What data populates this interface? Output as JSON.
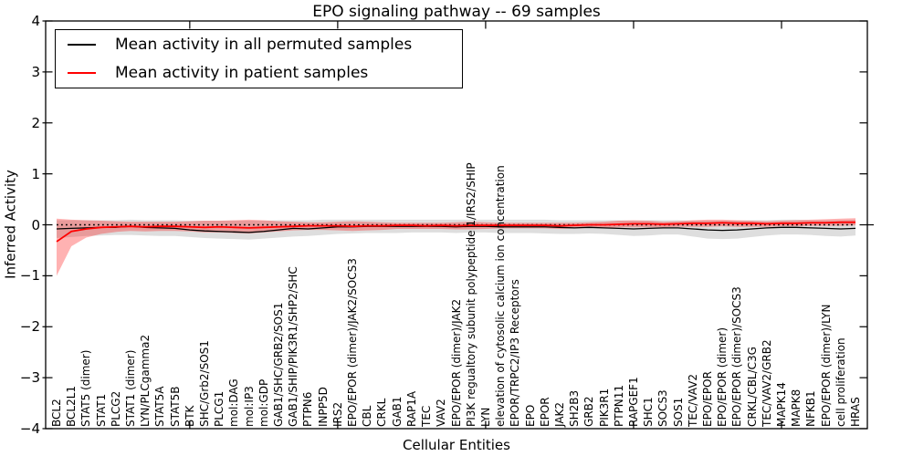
{
  "title": "EPO signaling pathway -- 69 samples",
  "legend": {
    "items": [
      {
        "label": "Mean activity in all permuted samples",
        "color": "#000000"
      },
      {
        "label": "Mean activity in patient samples",
        "color": "#ff0000"
      }
    ]
  },
  "axes": {
    "xlabel": "Cellular Entities",
    "ylabel": "Inferred Activity",
    "y_ticks": [
      4,
      3,
      2,
      1,
      0,
      -1,
      -2,
      -3,
      -4
    ],
    "ylim": [
      -4,
      4
    ]
  },
  "chart_data": {
    "type": "line",
    "title": "EPO signaling pathway -- 69 samples",
    "xlabel": "Cellular Entities",
    "ylabel": "Inferred Activity",
    "ylim": [
      -4,
      4
    ],
    "grid": false,
    "legend_position": "upper left",
    "reference_line": {
      "y": 0,
      "style": "dotted",
      "color": "#000000"
    },
    "x_major_ticks": [
      10,
      20,
      30,
      40,
      50
    ],
    "band_colors": {
      "permuted": "rgba(0,0,0,0.13)",
      "patient": "rgba(255,0,0,0.30)"
    },
    "categories": [
      "BCL2",
      "BCL2L1",
      "STAT5 (dimer)",
      "STAT1",
      "PLCG2",
      "STAT1 (dimer)",
      "LYN/PLCgamma2",
      "STAT5A",
      "STAT5B",
      "BTK",
      "SHC/Grb2/SOS1",
      "PLCG1",
      "mol:DAG",
      "mol:IP3",
      "mol:GDP",
      "GAB1/SHC/GRB2/SOS1",
      "GAB1/SHIP/PIK3R1/SHP2/SHC",
      "PTPN6",
      "INPP5D",
      "IRS2",
      "EPO/EPOR (dimer)/JAK2/SOCS3",
      "CBL",
      "CRKL",
      "GAB1",
      "RAP1A",
      "TEC",
      "VAV2",
      "EPO/EPOR (dimer)/JAK2",
      "PI3K regualtory subunit polypeptide 1/IRS2/SHIP",
      "LYN",
      "elevation of cytosolic calcium ion concentration",
      "EPOR/TRPC2/IP3 Receptors",
      "EPO",
      "EPOR",
      "JAK2",
      "SH2B3",
      "GRB2",
      "PIK3R1",
      "PTPN11",
      "RAPGEF1",
      "SHC1",
      "SOCS3",
      "SOS1",
      "TEC/VAV2",
      "EPO/EPOR",
      "EPO/EPOR (dimer)",
      "EPO/EPOR (dimer)/SOCS3",
      "CRKL/CBL/C3G",
      "TEC/VAV2/GRB2",
      "MAPK14",
      "MAPK8",
      "NFKB1",
      "EPO/EPOR (dimer)/LYN",
      "cell proliferation",
      "HRAS"
    ],
    "series": [
      {
        "name": "Mean activity in all permuted samples",
        "color": "#000000",
        "values": [
          -0.08,
          -0.07,
          -0.06,
          -0.05,
          -0.05,
          -0.03,
          -0.05,
          -0.06,
          -0.07,
          -0.1,
          -0.12,
          -0.13,
          -0.14,
          -0.15,
          -0.13,
          -0.1,
          -0.07,
          -0.08,
          -0.06,
          -0.04,
          -0.04,
          -0.03,
          -0.03,
          -0.03,
          -0.03,
          -0.03,
          -0.03,
          -0.04,
          -0.03,
          -0.03,
          -0.04,
          -0.04,
          -0.04,
          -0.04,
          -0.05,
          -0.06,
          -0.05,
          -0.06,
          -0.07,
          -0.08,
          -0.07,
          -0.06,
          -0.06,
          -0.08,
          -0.1,
          -0.11,
          -0.1,
          -0.08,
          -0.06,
          -0.05,
          -0.05,
          -0.06,
          -0.07,
          -0.08,
          -0.07
        ],
        "band_upper": [
          0.09,
          0.09,
          0.09,
          0.09,
          0.09,
          0.1,
          0.09,
          0.09,
          0.09,
          0.08,
          0.08,
          0.08,
          0.08,
          0.08,
          0.08,
          0.09,
          0.09,
          0.09,
          0.1,
          0.1,
          0.1,
          0.1,
          0.1,
          0.1,
          0.1,
          0.1,
          0.1,
          0.1,
          0.1,
          0.1,
          0.1,
          0.1,
          0.1,
          0.1,
          0.09,
          0.09,
          0.09,
          0.09,
          0.09,
          0.08,
          0.09,
          0.09,
          0.09,
          0.08,
          0.08,
          0.08,
          0.08,
          0.09,
          0.09,
          0.1,
          0.1,
          0.09,
          0.09,
          0.09,
          0.1
        ],
        "band_lower": [
          -0.26,
          -0.24,
          -0.22,
          -0.21,
          -0.2,
          -0.2,
          -0.21,
          -0.22,
          -0.22,
          -0.24,
          -0.26,
          -0.27,
          -0.28,
          -0.29,
          -0.27,
          -0.25,
          -0.23,
          -0.22,
          -0.2,
          -0.18,
          -0.17,
          -0.16,
          -0.16,
          -0.16,
          -0.15,
          -0.15,
          -0.15,
          -0.16,
          -0.15,
          -0.15,
          -0.16,
          -0.16,
          -0.16,
          -0.17,
          -0.18,
          -0.18,
          -0.17,
          -0.18,
          -0.2,
          -0.22,
          -0.21,
          -0.19,
          -0.19,
          -0.23,
          -0.27,
          -0.28,
          -0.27,
          -0.24,
          -0.21,
          -0.19,
          -0.19,
          -0.2,
          -0.22,
          -0.23,
          -0.21
        ]
      },
      {
        "name": "Mean activity in patient samples",
        "color": "#ff0000",
        "values": [
          -0.33,
          -0.13,
          -0.08,
          -0.05,
          -0.04,
          -0.03,
          -0.04,
          -0.03,
          -0.03,
          -0.04,
          -0.05,
          -0.04,
          -0.05,
          -0.06,
          -0.05,
          -0.04,
          -0.03,
          -0.02,
          -0.02,
          -0.02,
          -0.03,
          -0.02,
          -0.02,
          -0.01,
          -0.01,
          -0.02,
          -0.01,
          -0.02,
          -0.01,
          -0.01,
          -0.01,
          -0.01,
          -0.01,
          -0.01,
          -0.02,
          -0.01,
          0.0,
          0.0,
          0.01,
          0.02,
          0.02,
          0.01,
          0.02,
          0.03,
          0.03,
          0.04,
          0.03,
          0.03,
          0.02,
          0.03,
          0.03,
          0.04,
          0.04,
          0.05,
          0.05
        ],
        "band_upper": [
          0.12,
          0.1,
          0.09,
          0.08,
          0.07,
          0.06,
          0.06,
          0.06,
          0.06,
          0.07,
          0.08,
          0.08,
          0.09,
          0.1,
          0.09,
          0.07,
          0.06,
          0.05,
          0.05,
          0.06,
          0.07,
          0.06,
          0.05,
          0.04,
          0.04,
          0.04,
          0.04,
          0.05,
          0.06,
          0.05,
          0.04,
          0.04,
          0.04,
          0.04,
          0.04,
          0.04,
          0.05,
          0.06,
          0.08,
          0.09,
          0.08,
          0.06,
          0.07,
          0.09,
          0.1,
          0.1,
          0.09,
          0.08,
          0.07,
          0.08,
          0.09,
          0.1,
          0.11,
          0.12,
          0.13
        ],
        "band_lower": [
          -1.0,
          -0.42,
          -0.25,
          -0.18,
          -0.14,
          -0.12,
          -0.13,
          -0.12,
          -0.12,
          -0.13,
          -0.15,
          -0.15,
          -0.16,
          -0.17,
          -0.15,
          -0.13,
          -0.11,
          -0.1,
          -0.1,
          -0.11,
          -0.12,
          -0.11,
          -0.1,
          -0.08,
          -0.08,
          -0.08,
          -0.08,
          -0.09,
          -0.09,
          -0.08,
          -0.07,
          -0.07,
          -0.07,
          -0.07,
          -0.08,
          -0.07,
          -0.06,
          -0.06,
          -0.05,
          -0.05,
          -0.05,
          -0.05,
          -0.04,
          -0.04,
          -0.04,
          -0.03,
          -0.04,
          -0.04,
          -0.04,
          -0.03,
          -0.03,
          -0.02,
          -0.02,
          -0.02,
          -0.01
        ]
      }
    ]
  }
}
